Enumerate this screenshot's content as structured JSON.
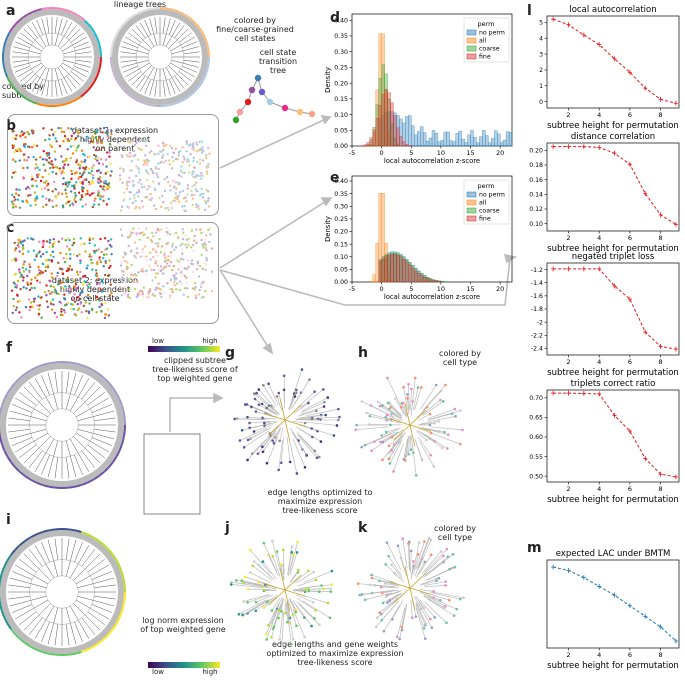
{
  "panels": {
    "a": {
      "letter": "a",
      "lineage_trees": "lineage trees",
      "colored_by_subtree": "colored by\nsubtree",
      "colored_by_states": "colored by\nfine/coarse-grained\ncell states",
      "transition_tree": "cell state\ntransition\ntree"
    },
    "b": {
      "letter": "b",
      "text": "dataset 1: expression\nhighly dependent\non parent"
    },
    "c": {
      "letter": "c",
      "text": "dataset 2: expression\nhighly dependent\non cell state"
    },
    "f": {
      "letter": "f",
      "low": "low",
      "high": "high",
      "caption": "clipped subtree\ntree-likeness score of\ntop weighted gene"
    },
    "g": {
      "letter": "g",
      "caption": "edge lengths optimized to\nmaximize expression\ntree-likeness score"
    },
    "h": {
      "letter": "h",
      "caption": "colored by\ncell type"
    },
    "i": {
      "letter": "i",
      "caption": "log norm expression\nof top weighted gene",
      "low": "low",
      "high": "high"
    },
    "j": {
      "letter": "j",
      "caption": "edge lengths and gene weights\noptimized to maximize expression\ntree-likeness score"
    },
    "k": {
      "letter": "k",
      "caption": "colored by\ncell type"
    },
    "d": {
      "letter": "d"
    },
    "e": {
      "letter": "e"
    },
    "l": {
      "letter": "l"
    },
    "m": {
      "letter": "m"
    }
  },
  "colors": {
    "no_perm": "#1f77b4",
    "all": "#ff7f0e",
    "coarse": "#2ca02c",
    "fine": "#d62728",
    "red": "#e41a1c",
    "blue": "#1f77b4"
  },
  "chart_data": [
    {
      "id": "d",
      "type": "histogram",
      "xlabel": "local autocorrelation z-score",
      "ylabel": "Density",
      "xlim": [
        -5,
        22
      ],
      "ylim": [
        0,
        0.42
      ],
      "xticks": [
        -5,
        0,
        5,
        10,
        15,
        20
      ],
      "yticks": [
        0.0,
        0.05,
        0.1,
        0.15,
        0.2,
        0.25,
        0.3,
        0.35,
        0.4
      ],
      "legend_title": "perm",
      "legend_position": "top-right",
      "series": [
        {
          "name": "no perm",
          "color": "#1f77b4"
        },
        {
          "name": "all",
          "color": "#ff7f0e"
        },
        {
          "name": "coarse",
          "color": "#2ca02c"
        },
        {
          "name": "fine",
          "color": "#d62728"
        }
      ]
    },
    {
      "id": "e",
      "type": "histogram",
      "xlabel": "local autocorrelation z-score",
      "ylabel": "Density",
      "xlim": [
        -5,
        22
      ],
      "ylim": [
        0,
        0.42
      ],
      "xticks": [
        -5,
        0,
        5,
        10,
        15,
        20
      ],
      "yticks": [
        0.0,
        0.05,
        0.1,
        0.15,
        0.2,
        0.25,
        0.3,
        0.35,
        0.4
      ],
      "legend_title": "perm",
      "legend_position": "top-right",
      "series": [
        {
          "name": "no perm",
          "color": "#1f77b4"
        },
        {
          "name": "all",
          "color": "#ff7f0e"
        },
        {
          "name": "coarse",
          "color": "#2ca02c"
        },
        {
          "name": "fine",
          "color": "#d62728"
        }
      ]
    },
    {
      "id": "l1",
      "type": "line",
      "title": "local autocorrelation",
      "xlabel": "subtree height for permutation",
      "xlim": [
        0.6,
        9.2
      ],
      "ylim": [
        -0.4,
        5.4
      ],
      "xticks": [
        2,
        4,
        6,
        8
      ],
      "yticks": [
        0,
        1,
        2,
        3,
        4,
        5
      ],
      "x": [
        1,
        2,
        3,
        4,
        5,
        6,
        7,
        8,
        9
      ],
      "y": [
        5.2,
        4.85,
        4.2,
        3.6,
        2.7,
        1.85,
        0.85,
        0.15,
        -0.1
      ],
      "color": "#e41a1c"
    },
    {
      "id": "l2",
      "type": "line",
      "title": "distance correlation",
      "xlabel": "subtree height for permutation",
      "xlim": [
        0.6,
        9.2
      ],
      "ylim": [
        0.09,
        0.21
      ],
      "xticks": [
        2,
        4,
        6,
        8
      ],
      "yticks": [
        0.1,
        0.12,
        0.14,
        0.16,
        0.18,
        0.2
      ],
      "x": [
        1,
        2,
        3,
        4,
        5,
        6,
        7,
        8,
        9
      ],
      "y": [
        0.205,
        0.205,
        0.205,
        0.204,
        0.196,
        0.181,
        0.141,
        0.112,
        0.099
      ],
      "color": "#e41a1c"
    },
    {
      "id": "l3",
      "type": "line",
      "title": "negated triplet loss",
      "xlabel": "subtree height for permutation",
      "xlim": [
        0.6,
        9.2
      ],
      "ylim": [
        -2.5,
        -1.1
      ],
      "xticks": [
        2,
        4,
        6,
        8
      ],
      "yticks": [
        -1.2,
        -1.4,
        -1.6,
        -1.8,
        -2.0,
        -2.2,
        -2.4
      ],
      "x": [
        1,
        2,
        3,
        4,
        5,
        6,
        7,
        8,
        9
      ],
      "y": [
        -1.19,
        -1.19,
        -1.19,
        -1.19,
        -1.45,
        -1.65,
        -2.15,
        -2.37,
        -2.41
      ],
      "color": "#e41a1c"
    },
    {
      "id": "l4",
      "type": "line",
      "title": "triplets correct ratio",
      "xlabel": "subtree height for permutation",
      "xlim": [
        0.6,
        9.2
      ],
      "ylim": [
        0.485,
        0.72
      ],
      "xticks": [
        2,
        4,
        6,
        8
      ],
      "yticks": [
        0.5,
        0.55,
        0.6,
        0.65,
        0.7
      ],
      "x": [
        1,
        2,
        3,
        4,
        5,
        6,
        7,
        8,
        9
      ],
      "y": [
        0.712,
        0.712,
        0.711,
        0.71,
        0.655,
        0.615,
        0.545,
        0.505,
        0.498
      ],
      "color": "#e41a1c"
    },
    {
      "id": "m",
      "type": "line",
      "title": "expected LAC under BMTM",
      "xlabel": "subtree height for permutation",
      "xlim": [
        0.6,
        9.2
      ],
      "ylim": [
        -0.02,
        0.23
      ],
      "xticks": [
        2,
        4,
        6,
        8
      ],
      "yticks": [],
      "x": [
        1,
        2,
        3,
        4,
        5,
        6,
        7,
        8,
        9
      ],
      "y": [
        0.21,
        0.2,
        0.18,
        0.155,
        0.13,
        0.1,
        0.07,
        0.04,
        0.0
      ],
      "color": "#1f77b4"
    }
  ]
}
